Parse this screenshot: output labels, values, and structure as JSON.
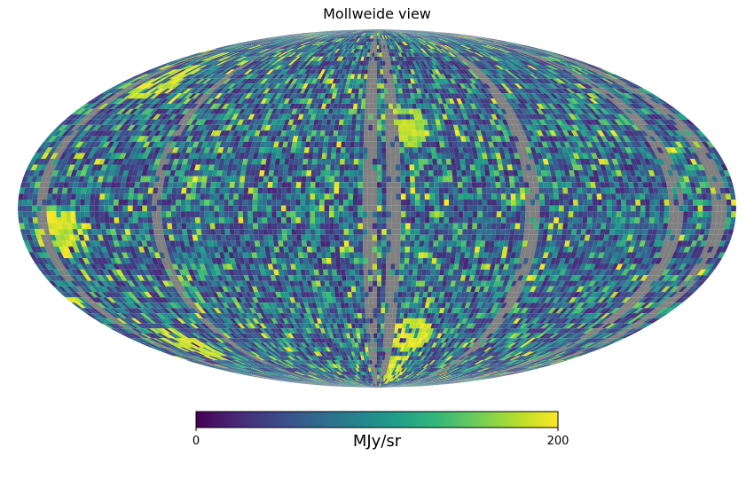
{
  "chart_data": {
    "type": "heatmap",
    "title": "Mollweide view",
    "projection": "Mollweide",
    "colormap": "viridis",
    "masked_color": "#808080",
    "vmin": 0,
    "vmax": 200,
    "colorbar": {
      "label": "MJy/sr",
      "tick_labels": [
        "0",
        "200"
      ],
      "tick_values": [
        0,
        200
      ]
    },
    "grid_resolution": {
      "cols": 150,
      "rows": 75
    },
    "masked_meridians_deg": [
      -168,
      -110,
      -4,
      8,
      78,
      150,
      172
    ],
    "bright_features": [
      {
        "lon_deg": -150,
        "lat_deg": 55,
        "value": 200
      },
      {
        "lon_deg": -160,
        "lat_deg": -10,
        "value": 200
      },
      {
        "lon_deg": -145,
        "lat_deg": -60,
        "value": 200
      },
      {
        "lon_deg": 15,
        "lat_deg": 35,
        "value": 190
      },
      {
        "lon_deg": 25,
        "lat_deg": -55,
        "value": 200
      },
      {
        "lon_deg": 20,
        "lat_deg": -75,
        "value": 200
      }
    ]
  }
}
